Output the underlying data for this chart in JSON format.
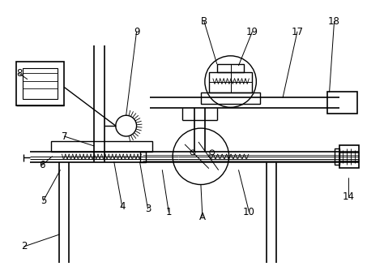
{
  "bg_color": "#ffffff",
  "line_color": "#000000",
  "figsize": [
    4.74,
    3.39
  ],
  "dpi": 100
}
